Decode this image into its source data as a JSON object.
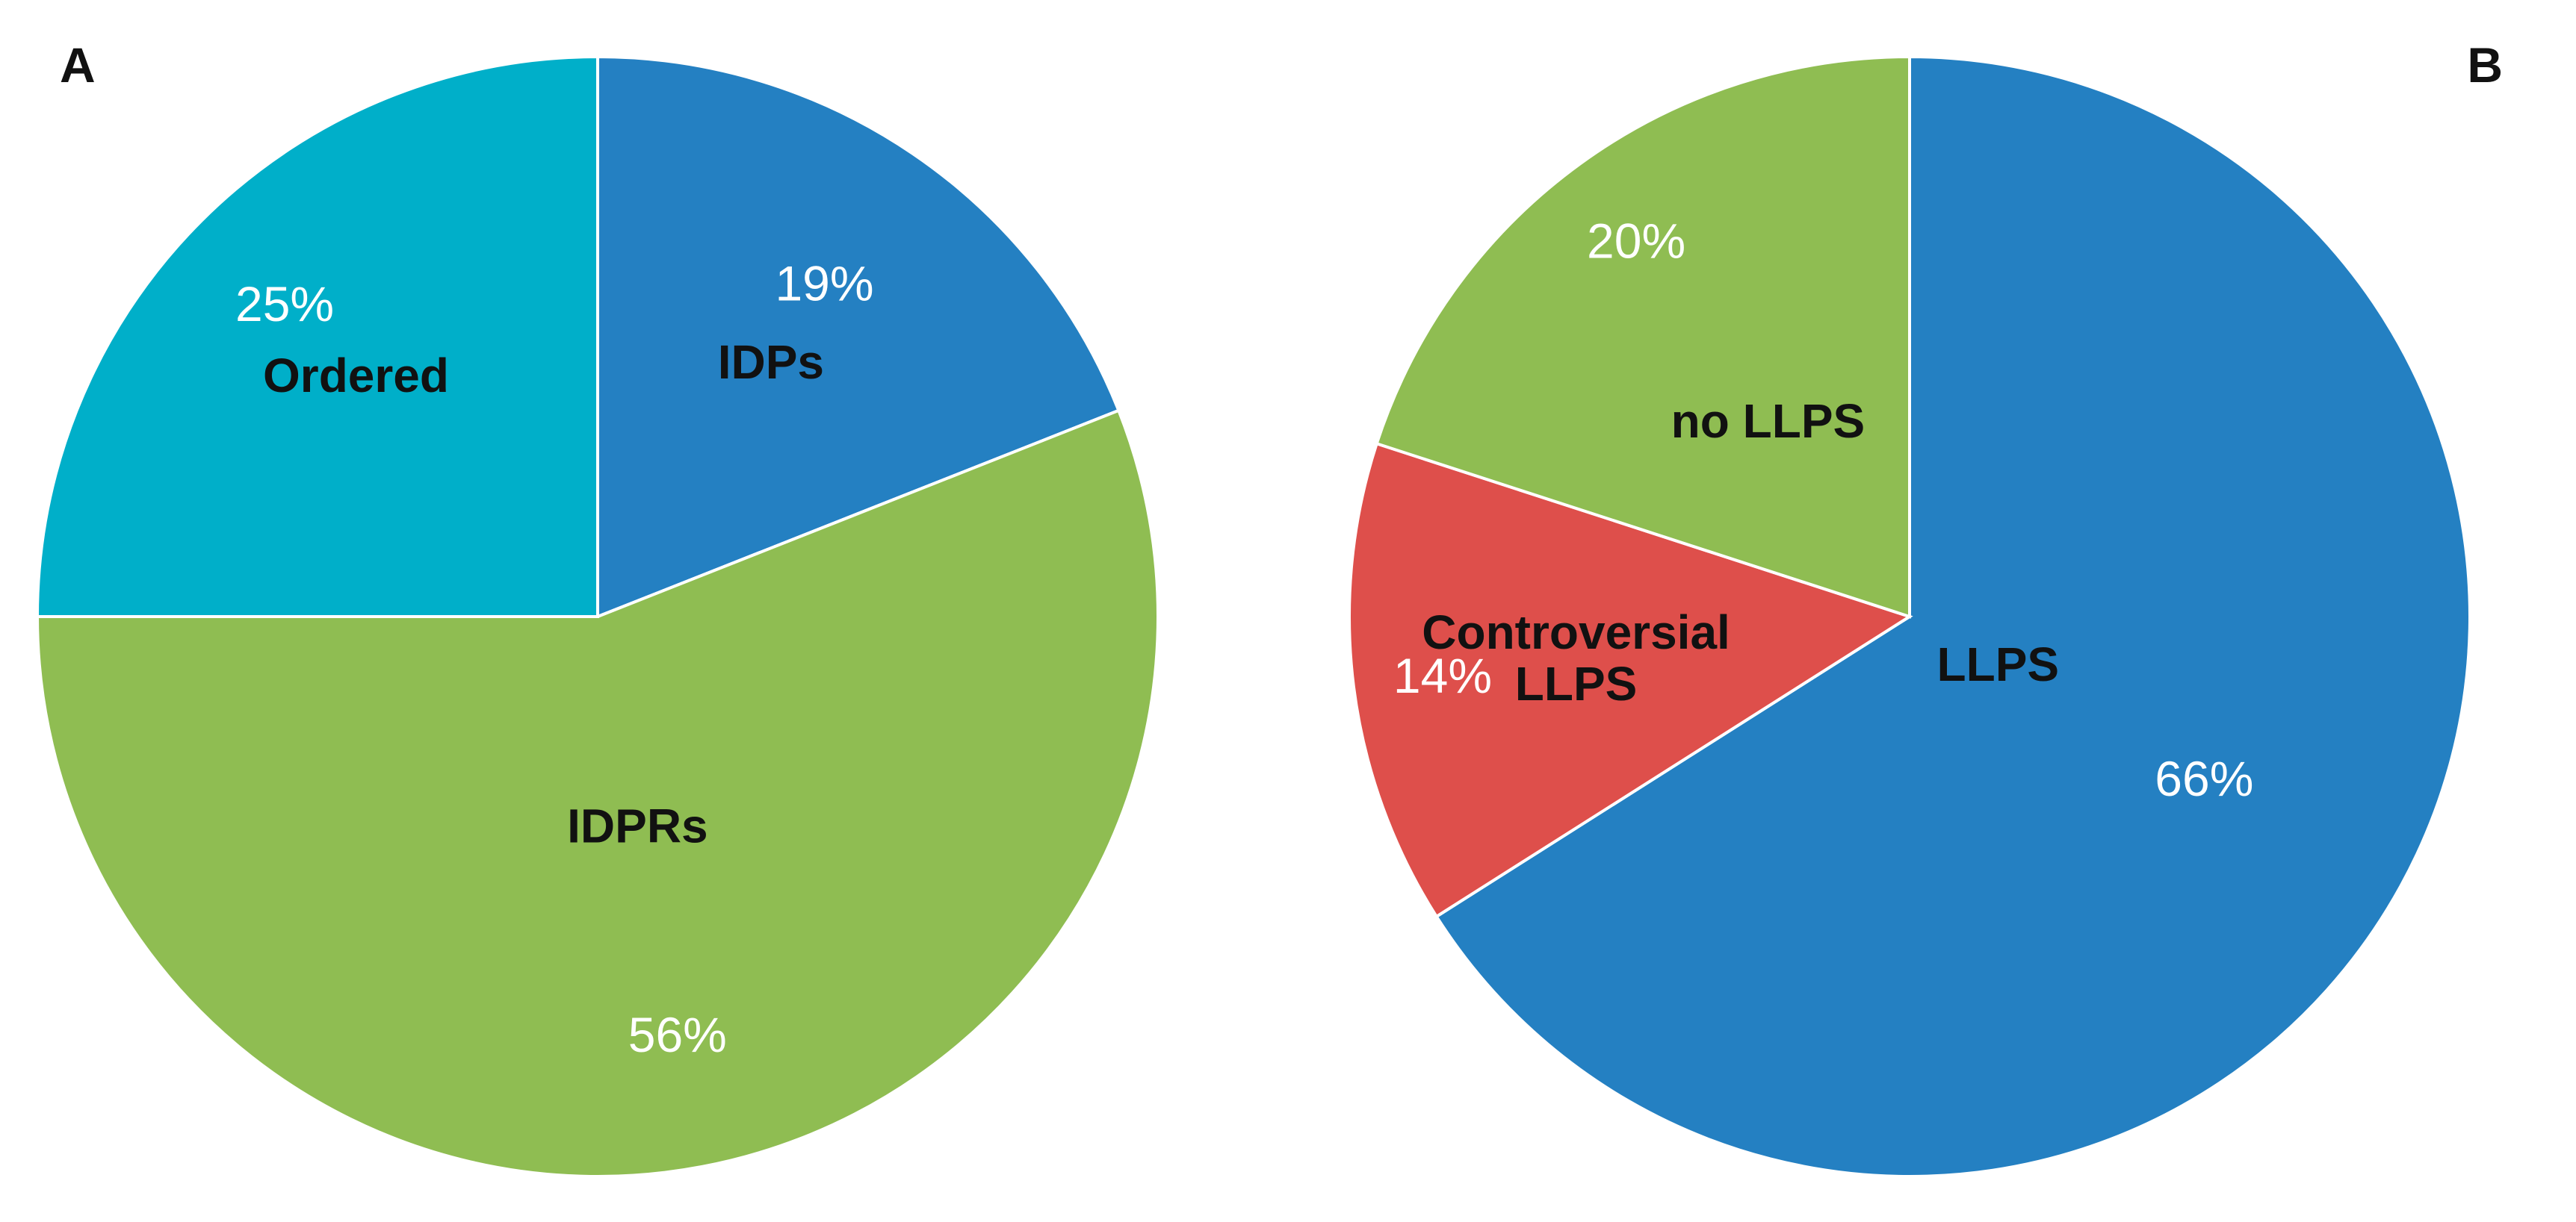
{
  "chart_data": [
    {
      "type": "pie",
      "panel": "A",
      "slices": [
        {
          "label": "IDPs",
          "value": 19,
          "value_label": "19%",
          "color": "#2480C2"
        },
        {
          "label": "IDPRs",
          "value": 56,
          "value_label": "56%",
          "color": "#8FBD52"
        },
        {
          "label": "Ordered",
          "value": 25,
          "value_label": "25%",
          "color": "#00AFC9"
        }
      ]
    },
    {
      "type": "pie",
      "panel": "B",
      "slices": [
        {
          "label": "LLPS",
          "value": 66,
          "value_label": "66%",
          "color": "#2480C2"
        },
        {
          "label": "Controversial LLPS",
          "label_lines": [
            "Controversial",
            "LLPS"
          ],
          "value": 14,
          "value_label": "14%",
          "color": "#DE4F4B"
        },
        {
          "label": "no LLPS",
          "value": 20,
          "value_label": "20%",
          "color": "#8FBD52"
        }
      ]
    }
  ]
}
